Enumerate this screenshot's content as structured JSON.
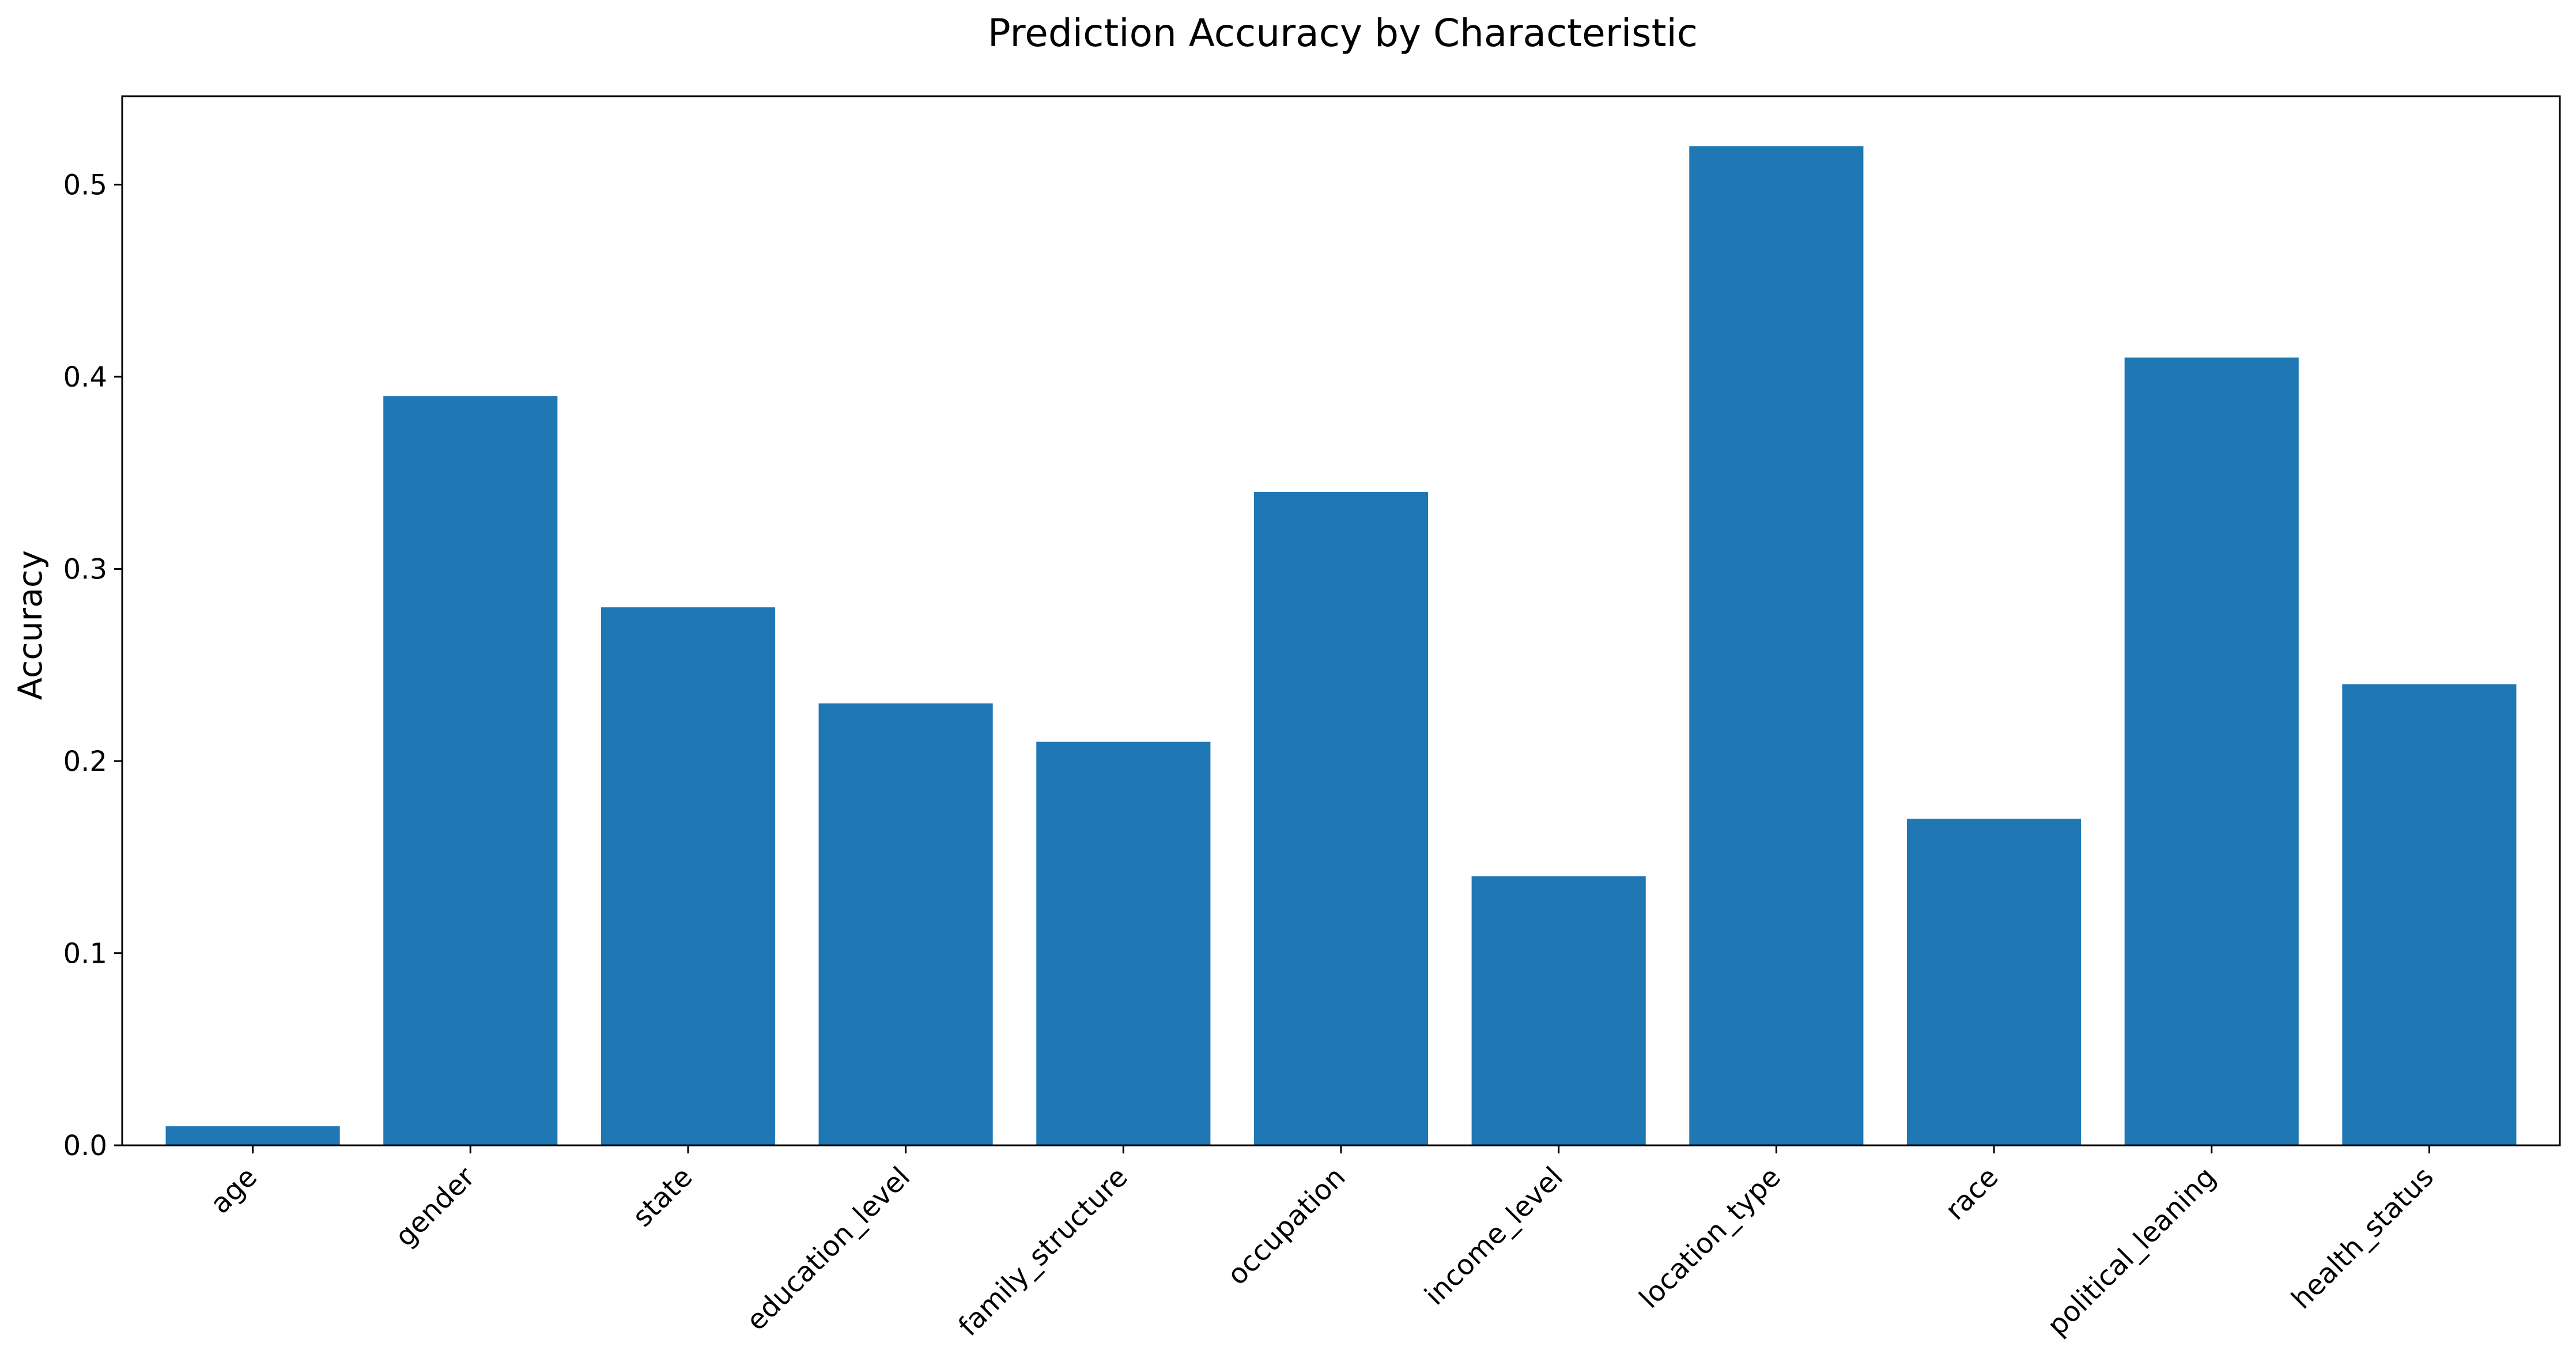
{
  "chart_data": {
    "type": "bar",
    "title": "Prediction Accuracy by Characteristic",
    "xlabel": "",
    "ylabel": "Accuracy",
    "categories": [
      "age",
      "gender",
      "state",
      "education_level",
      "family_structure",
      "occupation",
      "income_level",
      "location_type",
      "race",
      "political_leaning",
      "health_status"
    ],
    "values": [
      0.01,
      0.39,
      0.28,
      0.23,
      0.21,
      0.34,
      0.14,
      0.52,
      0.17,
      0.41,
      0.24
    ],
    "ylim": [
      0,
      0.546
    ],
    "yticks": [
      0.0,
      0.1,
      0.2,
      0.3,
      0.4,
      0.5
    ],
    "ytick_labels": [
      "0.0",
      "0.1",
      "0.2",
      "0.3",
      "0.4",
      "0.5"
    ],
    "bar_color": "#1f77b4",
    "grid": false,
    "legend": "none"
  }
}
